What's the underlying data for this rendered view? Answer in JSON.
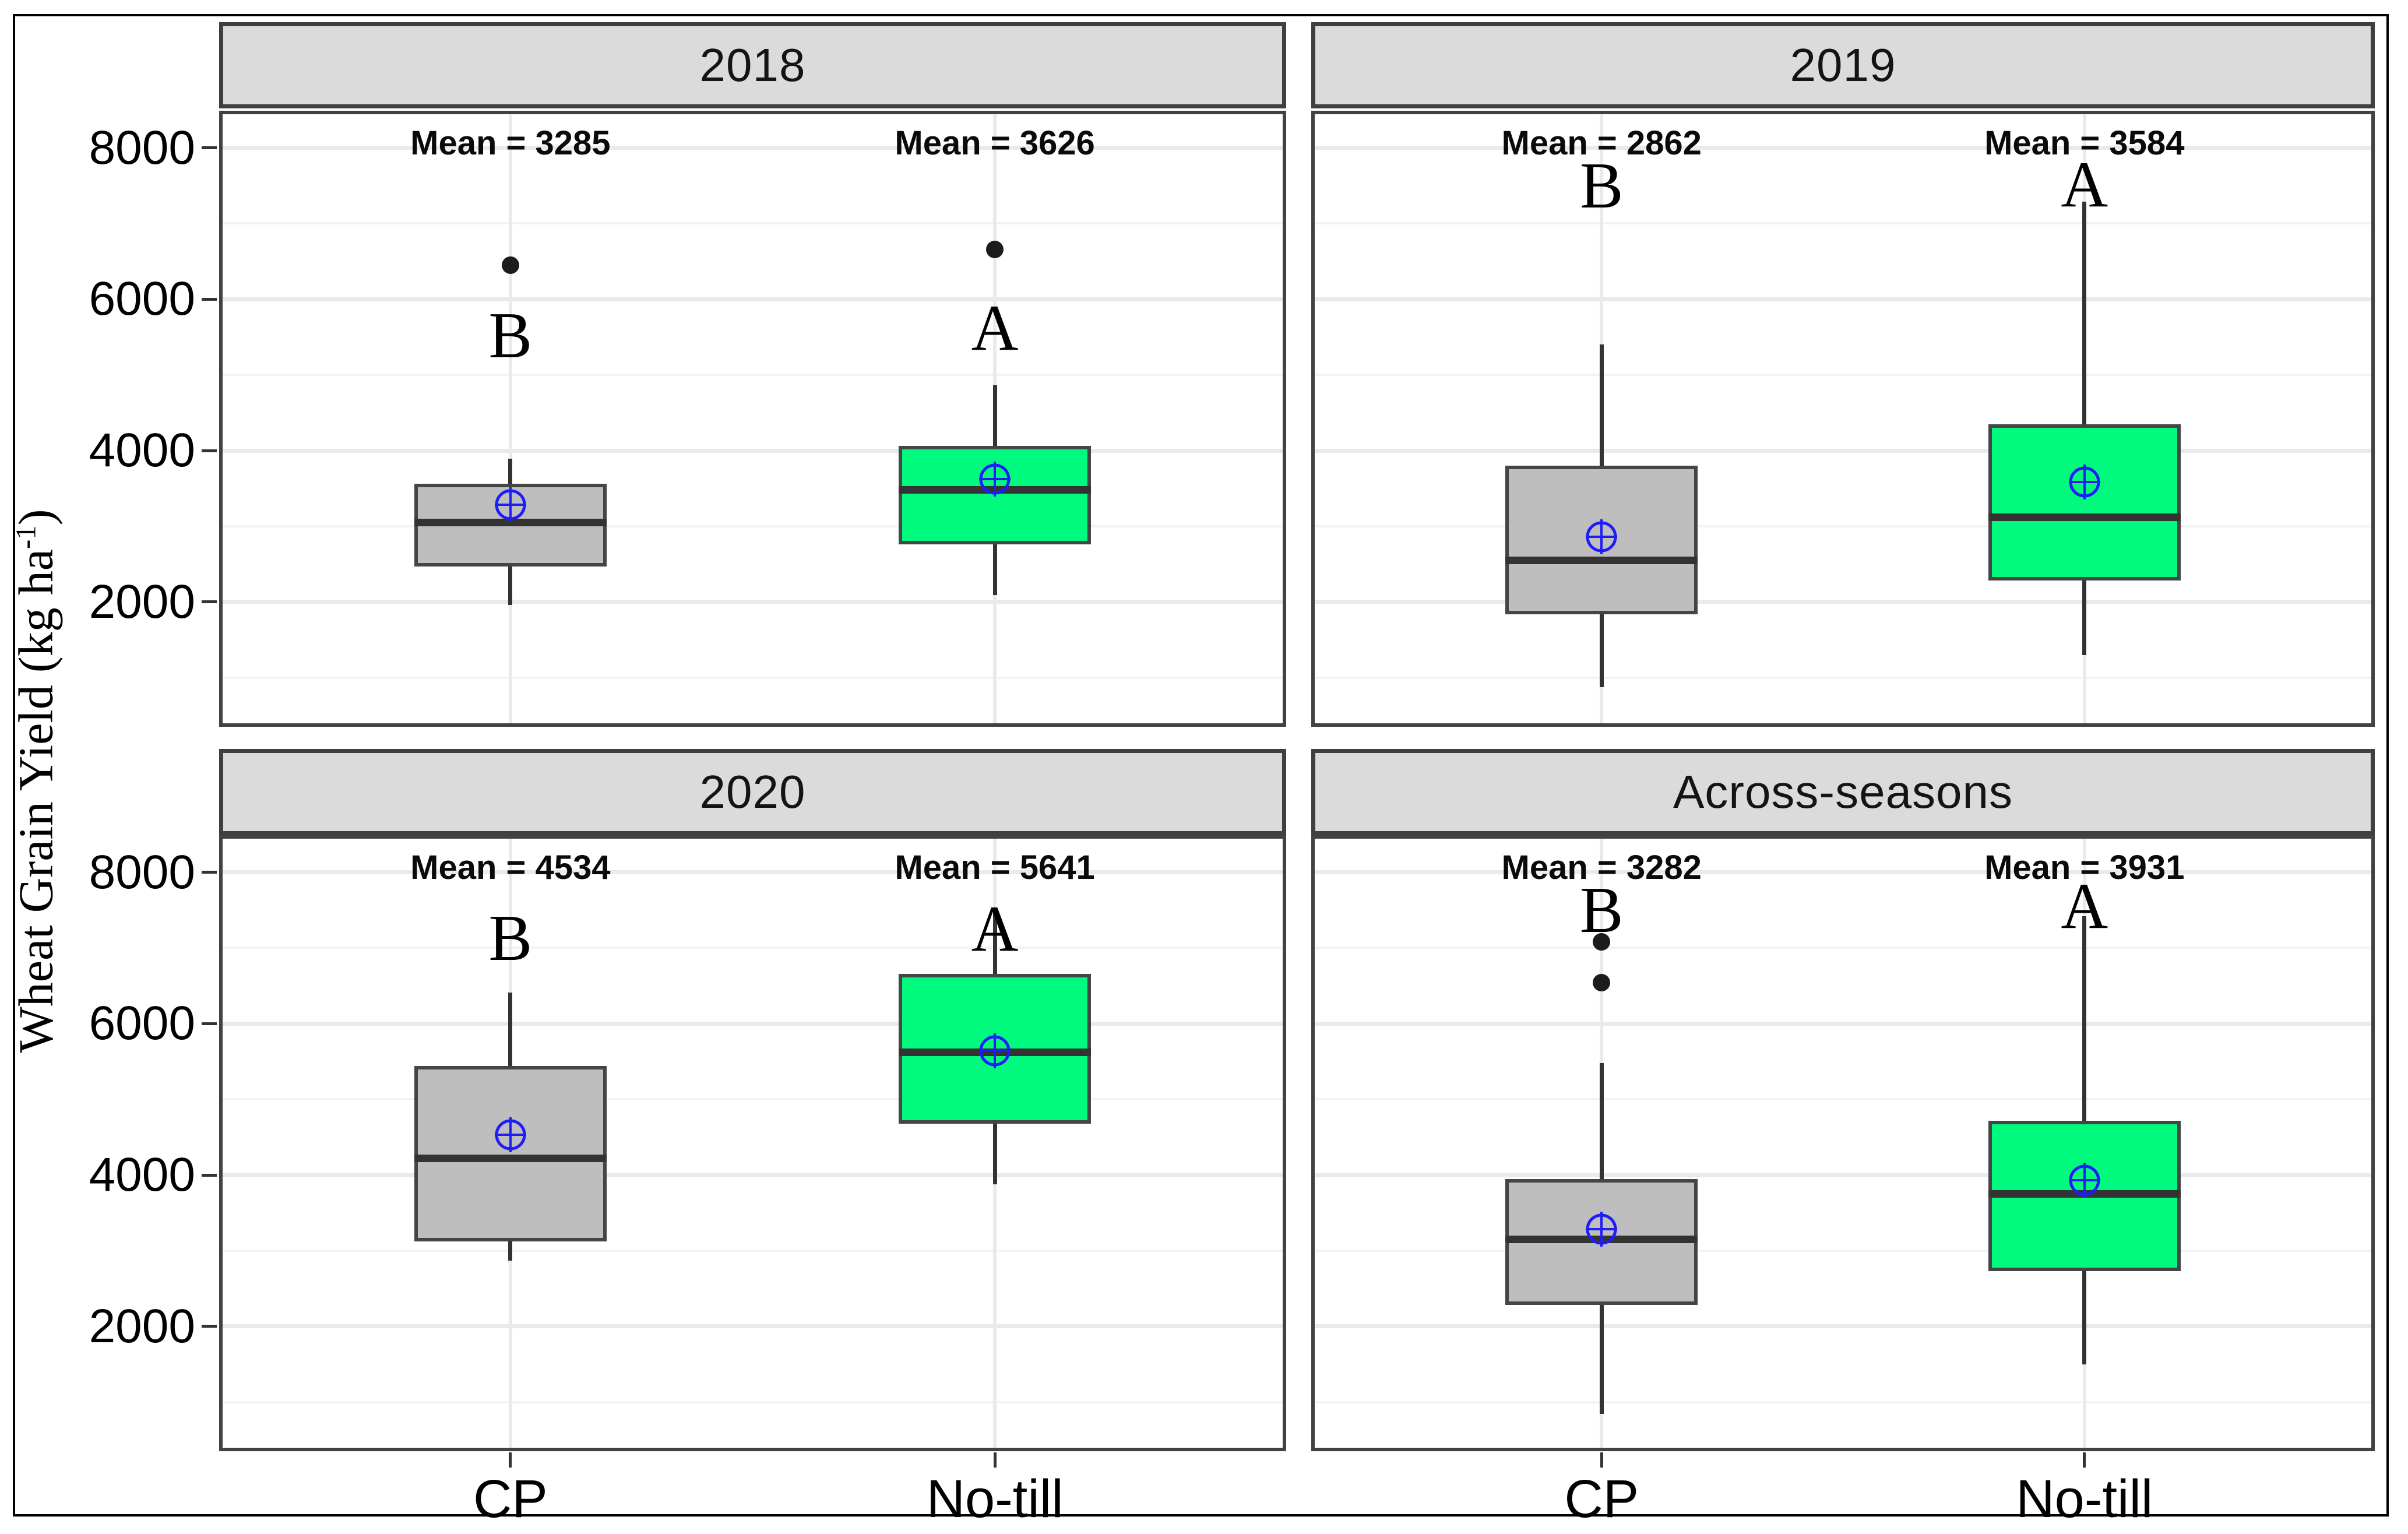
{
  "figure": {
    "y_axis_label": {
      "prefix": "Wheat Grain Yield (kg ha",
      "superscript": "-1",
      "suffix": ")"
    }
  },
  "axis": {
    "y_ticks": [
      "8000",
      "6000",
      "4000",
      "2000"
    ],
    "x_categories": [
      "CP",
      "No-till"
    ]
  },
  "colors": {
    "cp_fill": "#BEBEBE",
    "no_till_fill": "#00FA7E",
    "box_border": "#454545",
    "median": "#333333",
    "whisker": "#333333",
    "mean_marker": "#1F1CFA",
    "outlier": "#1C1C1C",
    "strip_bg": "#DBDBDB",
    "strip_border": "#3F3F3F",
    "panel_border": "#424242",
    "grid_major": "#EAEAEA",
    "grid_minor": "#F3F3F3",
    "outer_border": "#000000",
    "text": "#000000"
  },
  "chart_data": {
    "type": "boxplot",
    "title": "",
    "xlabel": "",
    "ylabel": "Wheat Grain Yield (kg ha-1)",
    "x_categories": [
      "CP",
      "No-till"
    ],
    "y_axis": {
      "tick_values": [
        8000,
        6000,
        4000,
        2000
      ],
      "range": [
        350,
        8490
      ],
      "gridlines_major": [
        2000,
        4000,
        6000,
        8000
      ],
      "gridlines_minor": [
        1000,
        3000,
        5000,
        7000
      ]
    },
    "grid": "on",
    "legend": "none",
    "facet_layout": "2x2",
    "mean_label_value": 8060,
    "facets": [
      {
        "title": "2018",
        "groups": [
          {
            "category": "CP",
            "fill": "cp_fill",
            "mean": 3285,
            "mean_label": "Mean = 3285",
            "letter": "B",
            "letter_value": 5520,
            "whisker_low": 1960,
            "q1": 2470,
            "median": 3050,
            "q3": 3560,
            "whisker_high": 3890,
            "outliers": [
              6450
            ]
          },
          {
            "category": "No-till",
            "fill": "no_till_fill",
            "mean": 3626,
            "mean_label": "Mean = 3626",
            "letter": "A",
            "letter_value": 5620,
            "whisker_low": 2090,
            "q1": 2760,
            "median": 3480,
            "q3": 4060,
            "whisker_high": 4860,
            "outliers": [
              6660
            ]
          }
        ]
      },
      {
        "title": "2019",
        "groups": [
          {
            "category": "CP",
            "fill": "cp_fill",
            "mean": 2862,
            "mean_label": "Mean = 2862",
            "letter": "B",
            "letter_value": 7500,
            "whisker_low": 870,
            "q1": 1840,
            "median": 2550,
            "q3": 3800,
            "whisker_high": 5400,
            "outliers": []
          },
          {
            "category": "No-till",
            "fill": "no_till_fill",
            "mean": 3584,
            "mean_label": "Mean = 3584",
            "letter": "A",
            "letter_value": 7510,
            "whisker_low": 1300,
            "q1": 2280,
            "median": 3120,
            "q3": 4350,
            "whisker_high": 7290,
            "outliers": []
          }
        ]
      },
      {
        "title": "2020",
        "groups": [
          {
            "category": "CP",
            "fill": "cp_fill",
            "mean": 4534,
            "mean_label": "Mean = 4534",
            "letter": "B",
            "letter_value": 7130,
            "whisker_low": 2870,
            "q1": 3120,
            "median": 4220,
            "q3": 5440,
            "whisker_high": 6410,
            "outliers": []
          },
          {
            "category": "No-till",
            "fill": "no_till_fill",
            "mean": 5641,
            "mean_label": "Mean = 5641",
            "letter": "A",
            "letter_value": 7250,
            "whisker_low": 3880,
            "q1": 4680,
            "median": 5620,
            "q3": 6660,
            "whisker_high": 7500,
            "outliers": []
          }
        ]
      },
      {
        "title": "Across-seasons",
        "groups": [
          {
            "category": "CP",
            "fill": "cp_fill",
            "mean": 3282,
            "mean_label": "Mean = 3282",
            "letter": "B",
            "letter_value": 7500,
            "whisker_low": 840,
            "q1": 2280,
            "median": 3150,
            "q3": 3950,
            "whisker_high": 5480,
            "outliers": [
              7080,
              6540
            ]
          },
          {
            "category": "No-till",
            "fill": "no_till_fill",
            "mean": 3931,
            "mean_label": "Mean = 3931",
            "letter": "A",
            "letter_value": 7550,
            "whisker_low": 1500,
            "q1": 2730,
            "median": 3750,
            "q3": 4720,
            "whisker_high": 7420,
            "outliers": []
          }
        ]
      }
    ]
  }
}
